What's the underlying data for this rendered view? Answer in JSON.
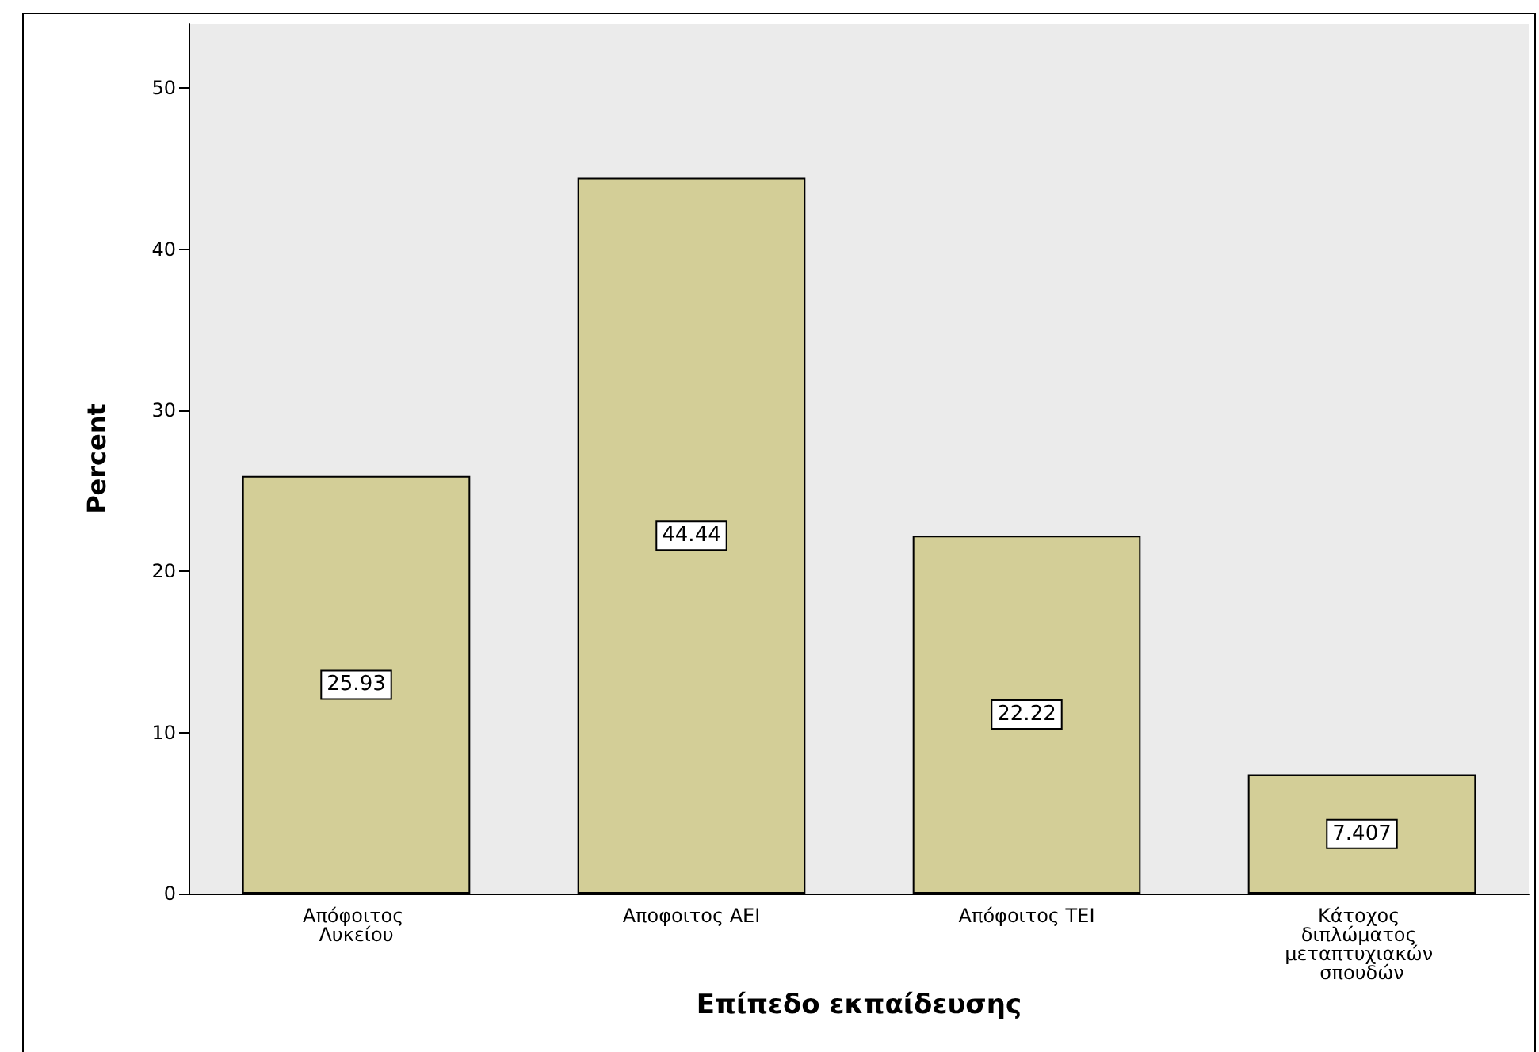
{
  "chart_data": {
    "type": "bar",
    "xlabel": "Επίπεδο εκπαίδευσης",
    "ylabel": "Percent",
    "categories": [
      "Απόφοιτος Λυκείου",
      "Αποφοιτος ΑΕΙ",
      "Απόφοιτος ΤΕΙ",
      "Κάτοχος διπλώματος μεταπτυχιακών σπουδών"
    ],
    "values": [
      25.93,
      44.44,
      22.22,
      7.407
    ],
    "color": "#d3ce97",
    "ylim": [
      0,
      54
    ],
    "yticks": [
      0,
      10,
      20,
      30,
      40,
      50
    ],
    "grid": false,
    "data_labels": true
  }
}
